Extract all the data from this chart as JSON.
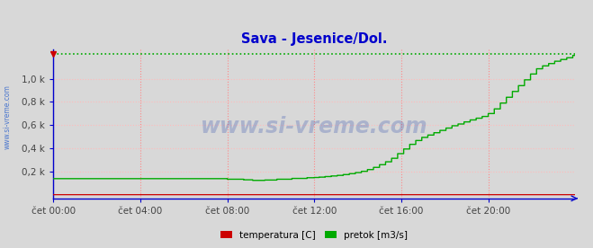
{
  "title": "Sava - Jesenice/Dol.",
  "title_color": "#0000cc",
  "bg_color": "#d8d8d8",
  "plot_bg_color": "#d8d8d8",
  "ytick_labels": [
    "0,2 k",
    "0,4 k",
    "0,6 k",
    "0,8 k",
    "1,0 k"
  ],
  "ytick_values": [
    200,
    400,
    600,
    800,
    1000
  ],
  "ymin": -30,
  "ymax": 1250,
  "xtick_labels": [
    "čet 00:00",
    "čet 04:00",
    "čet 08:00",
    "čet 12:00",
    "čet 16:00",
    "čet 20:00"
  ],
  "xtick_positions": [
    0,
    288,
    576,
    864,
    1152,
    1440
  ],
  "total_points": 1728,
  "dashed_line_value": 1215,
  "grid_color_v": "#ff8888",
  "grid_color_h": "#ffbbbb",
  "axis_color": "#0000cc",
  "temp_color": "#cc0000",
  "pretok_color": "#00aa00",
  "watermark": "www.si-vreme.com",
  "watermark_color": "#2244aa",
  "watermark_alpha": 0.25,
  "sidebar_text": "www.si-vreme.com",
  "sidebar_color": "#3366cc",
  "legend_temp_label": "temperatura [C]",
  "legend_pretok_label": "pretok [m3/s]",
  "legend_temp_color": "#cc0000",
  "legend_pretok_color": "#00aa00"
}
